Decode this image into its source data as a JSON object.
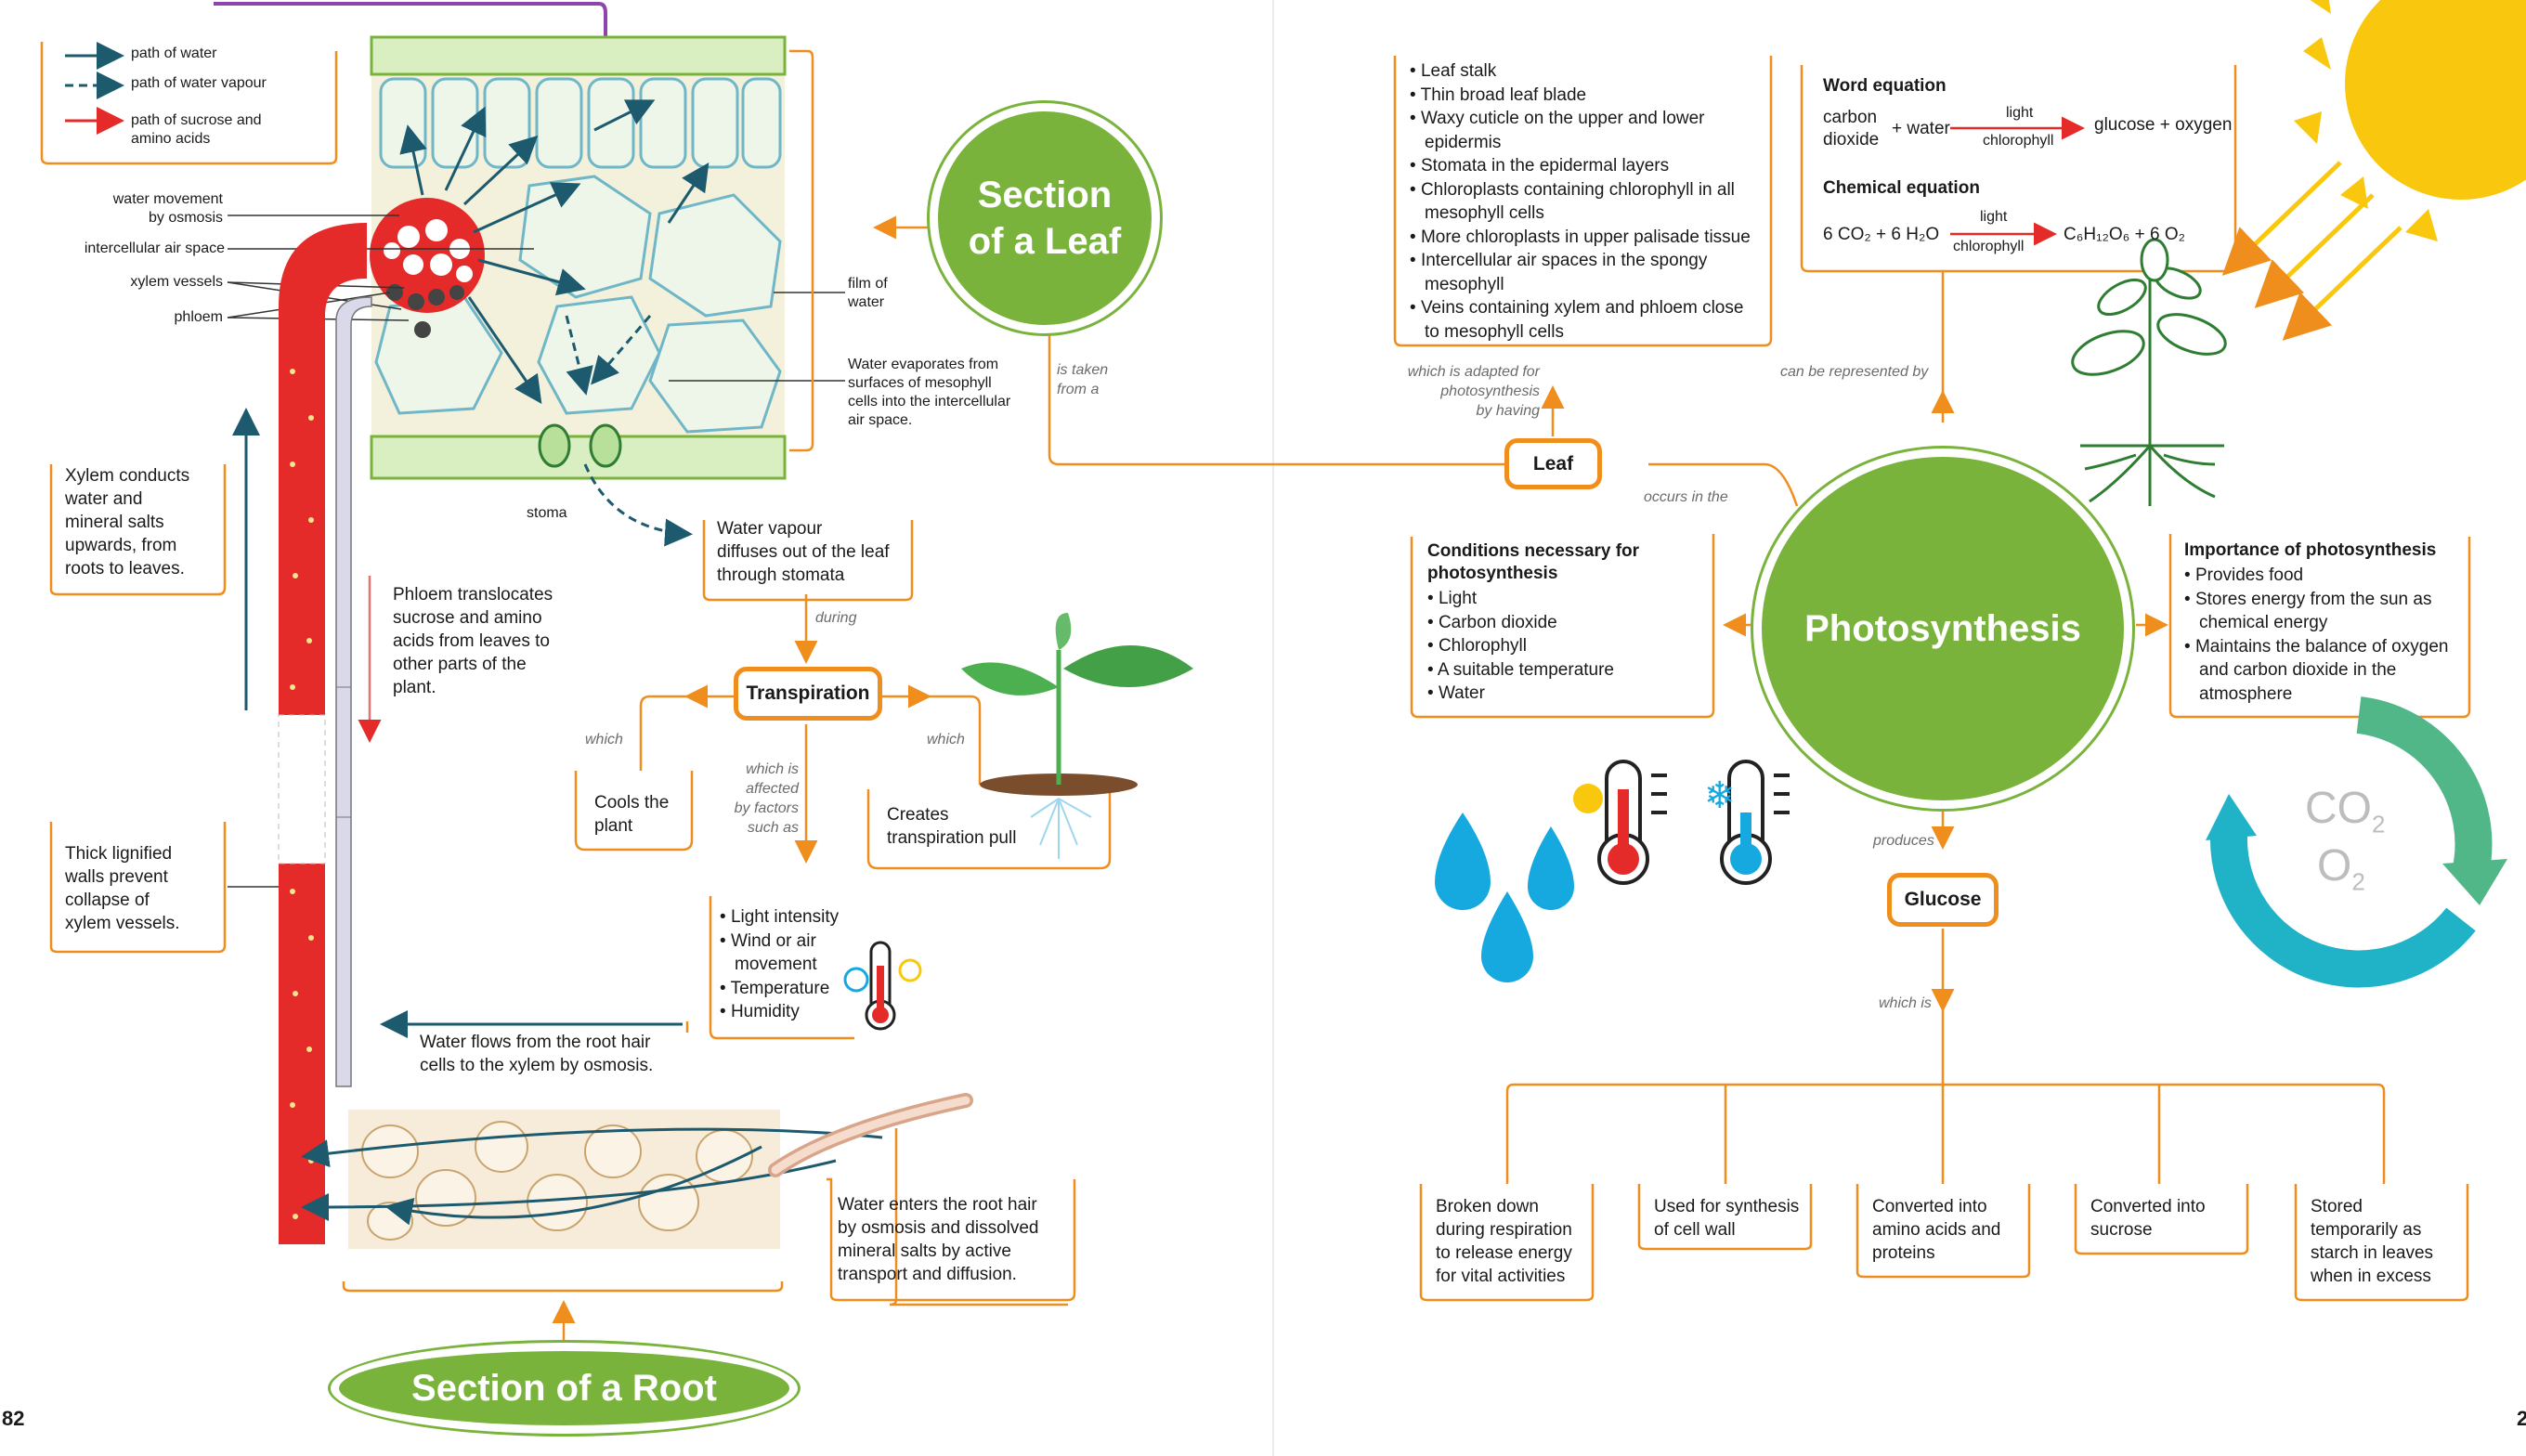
{
  "legend": {
    "water": "path of water",
    "vapour": "path of water vapour",
    "sucrose": "path of sucrose and\namino acids"
  },
  "leaf_labels": {
    "osmosis": "water movement\nby osmosis",
    "air_space": "intercellular air space",
    "xylem": "xylem vessels",
    "phloem": "phloem",
    "film": "film of\nwater",
    "evaporates": "Water evaporates from\nsurfaces of mesophyll\ncells into the intercellular\nair space.",
    "stoma": "stoma"
  },
  "left_texts": {
    "xylem_conducts": "Xylem conducts\nwater and\nmineral salts\nupwards, from\nroots to leaves.",
    "phloem_translocates": "Phloem translocates\nsucrose and amino\nacids from leaves to\nother parts of the\nplant.",
    "lignified": "Thick lignified\nwalls prevent\ncollapse of\nxylem vessels.",
    "water_flows": "Water flows from the root hair\ncells to the xylem by osmosis.",
    "root_hair": "Water enters the root hair\nby osmosis and dissolved\nmineral salts by active\ntransport and diffusion.",
    "vapour_diffuses": "Water vapour\ndiffuses out of the leaf\nthrough stomata"
  },
  "transpiration": {
    "title": "Transpiration",
    "during": "during",
    "which_left": "which",
    "which_right": "which",
    "factors_connector": "which is\naffected\nby factors\nsuch as",
    "cools": "Cools the\nplant",
    "pull": "Creates\ntranspiration pull",
    "factors": [
      "Light intensity",
      "Wind or air\nmovement",
      "Temperature",
      "Humidity"
    ]
  },
  "section_leaf": "Section\nof a Leaf",
  "section_root": "Section of a Root",
  "is_taken": "is taken\nfrom a",
  "leaf": {
    "title": "Leaf",
    "adapted": "which is adapted for\nphotosynthesis\nby having",
    "occurs": "occurs in the",
    "adaptations": [
      "Leaf stalk",
      "Thin broad leaf blade",
      "Waxy cuticle on the upper and lower epidermis",
      "Stomata in the epidermal layers",
      "Chloroplasts containing chlorophyll in all mesophyll cells",
      "More chloroplasts in upper palisade tissue",
      "Intercellular air spaces in the spongy mesophyll",
      "Veins containing xylem and phloem close to mesophyll cells"
    ]
  },
  "equations": {
    "word_title": "Word equation",
    "word_left": "carbon\ndioxide",
    "plus_water": "+ water",
    "word_right": "glucose + oxygen",
    "light": "light",
    "chlorophyll": "chlorophyll",
    "chem_title": "Chemical equation",
    "chem_left": "6 CO₂ + 6 H₂O",
    "chem_right": "C₆H₁₂O₆ + 6 O₂",
    "represented": "can be represented by"
  },
  "photosynthesis": "Photosynthesis",
  "conditions": {
    "title": "Conditions necessary for\nphotosynthesis",
    "items": [
      "Light",
      "Carbon dioxide",
      "Chlorophyll",
      "A suitable temperature",
      "Water"
    ]
  },
  "importance": {
    "title": "Importance of photosynthesis",
    "items": [
      "Provides food",
      "Stores energy from the sun as chemical energy",
      "Maintains the balance of oxygen and carbon dioxide in the atmosphere"
    ]
  },
  "cycle": {
    "co2": "CO",
    "co2_sub": "2",
    "o2": "O",
    "o2_sub": "2"
  },
  "glucose": {
    "title": "Glucose",
    "produces": "produces",
    "which_is": "which is",
    "uses": [
      "Broken down\nduring respiration\nto release energy\nfor vital activities",
      "Used for synthesis\nof cell wall",
      "Converted into\namino acids and\nproteins",
      "Converted into\nsucrose",
      "Stored\ntemporarily as\nstarch in leaves\nwhen in excess"
    ]
  },
  "pages": {
    "left": "82",
    "right": "2"
  },
  "colors": {
    "orange": "#ef8e1c",
    "green": "#7ab33c",
    "teal": "#1d5a6e",
    "red": "#e52a2a"
  }
}
